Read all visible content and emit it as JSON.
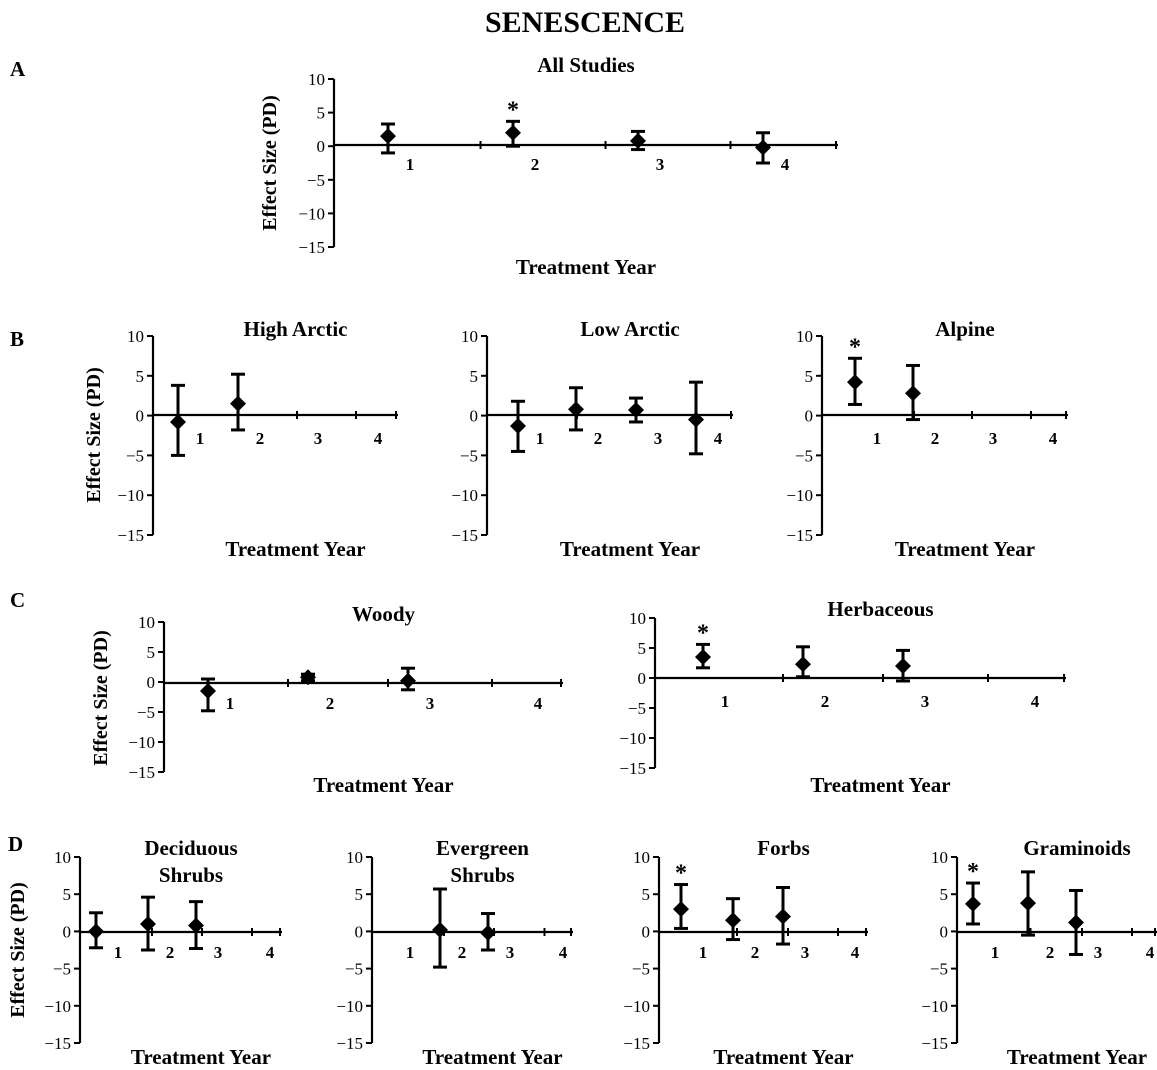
{
  "figure": {
    "title": "SENESCENCE",
    "panel_letters": [
      "A",
      "B",
      "C",
      "D"
    ]
  },
  "chart_data": [
    {
      "panel": "A",
      "type": "scatter",
      "title": "All Studies",
      "xlabel": "Treatment Year",
      "ylabel": "Effect Size (PD)",
      "x_categories": [
        "1",
        "2",
        "3",
        "4"
      ],
      "ylim": [
        -15,
        10
      ],
      "yticks": [
        "10",
        "5",
        "0",
        "−5",
        "−10",
        "−15"
      ],
      "points": [
        {
          "x": 1,
          "y": 1.5,
          "lower": -1.0,
          "upper": 3.3,
          "significant": false
        },
        {
          "x": 2,
          "y": 2.0,
          "lower": 0.0,
          "upper": 3.7,
          "significant": true
        },
        {
          "x": 3,
          "y": 0.8,
          "lower": -0.5,
          "upper": 2.2,
          "significant": false
        },
        {
          "x": 4,
          "y": -0.2,
          "lower": -2.5,
          "upper": 2.0,
          "significant": false
        }
      ]
    },
    {
      "panel": "B",
      "type": "scatter",
      "title": "High Arctic",
      "xlabel": "Treatment Year",
      "ylabel": "Effect Size (PD)",
      "x_categories": [
        "1",
        "2",
        "3",
        "4"
      ],
      "ylim": [
        -15,
        10
      ],
      "yticks": [
        "10",
        "5",
        "0",
        "−5",
        "−10",
        "−15"
      ],
      "points": [
        {
          "x": 1,
          "y": -0.8,
          "lower": -5.0,
          "upper": 3.8,
          "significant": false
        },
        {
          "x": 2,
          "y": 1.5,
          "lower": -1.8,
          "upper": 5.2,
          "significant": false
        }
      ]
    },
    {
      "panel": "B",
      "type": "scatter",
      "title": "Low Arctic",
      "xlabel": "Treatment Year",
      "ylabel": "",
      "x_categories": [
        "1",
        "2",
        "3",
        "4"
      ],
      "ylim": [
        -15,
        10
      ],
      "yticks": [
        "10",
        "5",
        "0",
        "−5",
        "−10",
        "−15"
      ],
      "points": [
        {
          "x": 1,
          "y": -1.3,
          "lower": -4.5,
          "upper": 1.8,
          "significant": false
        },
        {
          "x": 2,
          "y": 0.8,
          "lower": -1.8,
          "upper": 3.5,
          "significant": false
        },
        {
          "x": 3,
          "y": 0.7,
          "lower": -0.8,
          "upper": 2.2,
          "significant": false
        },
        {
          "x": 4,
          "y": -0.5,
          "lower": -4.8,
          "upper": 4.2,
          "significant": false
        }
      ]
    },
    {
      "panel": "B",
      "type": "scatter",
      "title": "Alpine",
      "xlabel": "Treatment Year",
      "ylabel": "",
      "x_categories": [
        "1",
        "2",
        "3",
        "4"
      ],
      "ylim": [
        -15,
        10
      ],
      "yticks": [
        "10",
        "5",
        "0",
        "−5",
        "−10",
        "−15"
      ],
      "points": [
        {
          "x": 1,
          "y": 4.2,
          "lower": 1.4,
          "upper": 7.2,
          "significant": true
        },
        {
          "x": 2,
          "y": 2.8,
          "lower": -0.5,
          "upper": 6.3,
          "significant": false
        }
      ]
    },
    {
      "panel": "C",
      "type": "scatter",
      "title": "Woody",
      "xlabel": "Treatment Year",
      "ylabel": "Effect Size (PD)",
      "x_categories": [
        "1",
        "2",
        "3",
        "4"
      ],
      "ylim": [
        -15,
        10
      ],
      "yticks": [
        "10",
        "5",
        "0",
        "−5",
        "−10",
        "−15"
      ],
      "points": [
        {
          "x": 1,
          "y": -1.5,
          "lower": -4.8,
          "upper": 0.5,
          "significant": false
        },
        {
          "x": 2,
          "y": 0.8,
          "lower": 0.2,
          "upper": 1.3,
          "significant": false
        },
        {
          "x": 3,
          "y": 0.2,
          "lower": -1.3,
          "upper": 2.3,
          "significant": false
        }
      ]
    },
    {
      "panel": "C",
      "type": "scatter",
      "title": "Herbaceous",
      "xlabel": "Treatment Year",
      "ylabel": "",
      "x_categories": [
        "1",
        "2",
        "3",
        "4"
      ],
      "ylim": [
        -15,
        10
      ],
      "yticks": [
        "10",
        "5",
        "0",
        "−5",
        "−10",
        "−15"
      ],
      "points": [
        {
          "x": 1,
          "y": 3.5,
          "lower": 1.7,
          "upper": 5.6,
          "significant": true
        },
        {
          "x": 2,
          "y": 2.3,
          "lower": 0.2,
          "upper": 5.2,
          "significant": false
        },
        {
          "x": 3,
          "y": 2.0,
          "lower": -0.5,
          "upper": 4.6,
          "significant": false
        }
      ]
    },
    {
      "panel": "D",
      "type": "scatter",
      "title": "Deciduous Shrubs",
      "xlabel": "Treatment Year",
      "ylabel": "Effect Size (PD)",
      "x_categories": [
        "1",
        "2",
        "3",
        "4"
      ],
      "ylim": [
        -15,
        10
      ],
      "yticks": [
        "10",
        "5",
        "0",
        "−5",
        "−10",
        "−15"
      ],
      "points": [
        {
          "x": 1,
          "y": 0.0,
          "lower": -2.2,
          "upper": 2.5,
          "significant": false
        },
        {
          "x": 2,
          "y": 1.0,
          "lower": -2.5,
          "upper": 4.6,
          "significant": false
        },
        {
          "x": 3,
          "y": 0.8,
          "lower": -2.3,
          "upper": 4.0,
          "significant": false
        }
      ]
    },
    {
      "panel": "D",
      "type": "scatter",
      "title": "Evergreen Shrubs",
      "xlabel": "Treatment Year",
      "ylabel": "",
      "x_categories": [
        "1",
        "2",
        "3",
        "4"
      ],
      "ylim": [
        -15,
        10
      ],
      "yticks": [
        "10",
        "5",
        "0",
        "−5",
        "−10",
        "−15"
      ],
      "points": [
        {
          "x": 2,
          "y": 0.2,
          "lower": -4.8,
          "upper": 5.7,
          "significant": false
        },
        {
          "x": 3,
          "y": -0.2,
          "lower": -2.5,
          "upper": 2.4,
          "significant": false
        }
      ]
    },
    {
      "panel": "D",
      "type": "scatter",
      "title": "Forbs",
      "xlabel": "Treatment Year",
      "ylabel": "",
      "x_categories": [
        "1",
        "2",
        "3",
        "4"
      ],
      "ylim": [
        -15,
        10
      ],
      "yticks": [
        "10",
        "5",
        "0",
        "−5",
        "−10",
        "−15"
      ],
      "points": [
        {
          "x": 1,
          "y": 3.0,
          "lower": 0.4,
          "upper": 6.3,
          "significant": true
        },
        {
          "x": 2,
          "y": 1.5,
          "lower": -1.1,
          "upper": 4.4,
          "significant": false
        },
        {
          "x": 3,
          "y": 2.0,
          "lower": -1.7,
          "upper": 5.9,
          "significant": false
        }
      ]
    },
    {
      "panel": "D",
      "type": "scatter",
      "title": "Graminoids",
      "xlabel": "Treatment Year",
      "ylabel": "",
      "x_categories": [
        "1",
        "2",
        "3",
        "4"
      ],
      "ylim": [
        -15,
        10
      ],
      "yticks": [
        "10",
        "5",
        "0",
        "−5",
        "−10",
        "−15"
      ],
      "points": [
        {
          "x": 1,
          "y": 3.7,
          "lower": 1.0,
          "upper": 6.5,
          "significant": true
        },
        {
          "x": 2,
          "y": 3.8,
          "lower": -0.5,
          "upper": 8.0,
          "significant": false
        },
        {
          "x": 3,
          "y": 1.2,
          "lower": -3.1,
          "upper": 5.5,
          "significant": false
        }
      ]
    }
  ]
}
